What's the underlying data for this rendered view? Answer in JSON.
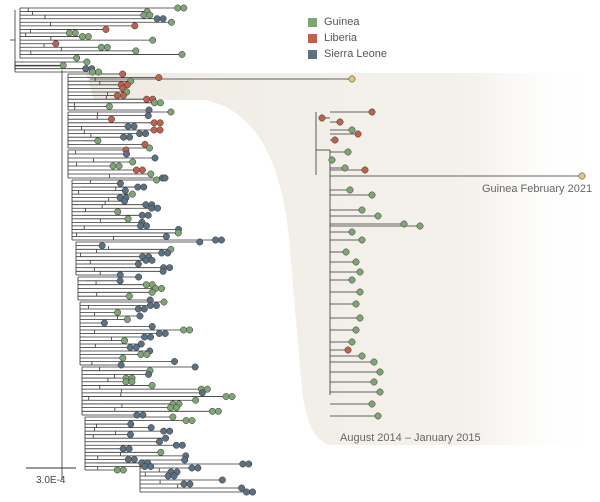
{
  "legend": [
    {
      "label": "Guinea",
      "color": "#7fa574"
    },
    {
      "label": "Liberia",
      "color": "#c0604f"
    },
    {
      "label": "Sierra Leone",
      "color": "#5b7183"
    }
  ],
  "annotations": {
    "outlier": "Guinea February 2021",
    "cluster_period": "August 2014 – January 2015"
  },
  "scale_bar": {
    "label": "3.0E-4"
  },
  "colors": {
    "guinea": "#7fa574",
    "liberia": "#c0604f",
    "sierra_leone": "#5b7183",
    "highlight": "#e4c574",
    "branch": "#333333",
    "shade": "#ece8df"
  }
}
